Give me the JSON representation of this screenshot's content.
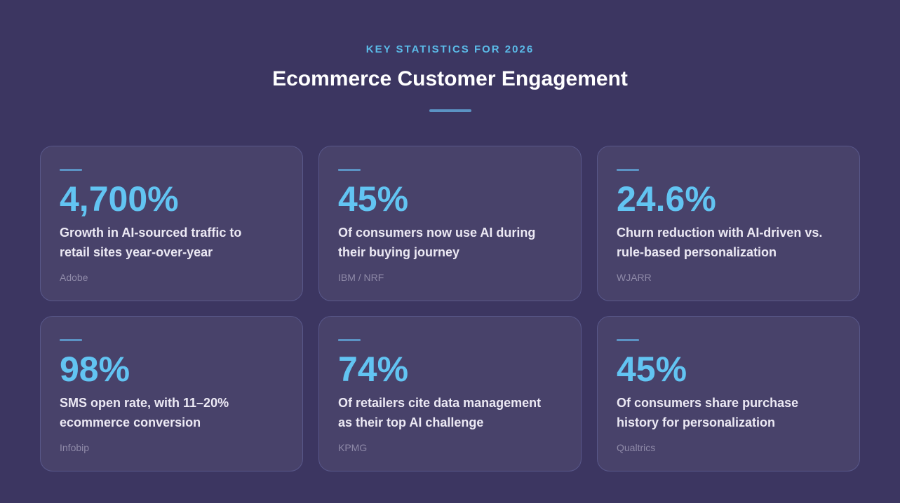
{
  "header": {
    "eyebrow": "KEY STATISTICS FOR 2026",
    "title": "Ecommerce Customer Engagement"
  },
  "colors": {
    "background": "#3c3661",
    "card": "#48426a",
    "accent": "#62c4f2",
    "rule": "#5b93c4"
  },
  "cards": [
    {
      "stat": "4,700%",
      "desc_lines": [
        "Growth in AI-sourced traffic to",
        "retail sites year-over-year"
      ],
      "source": "Adobe"
    },
    {
      "stat": "45%",
      "desc_lines": [
        "Of consumers now use AI during",
        "their buying journey"
      ],
      "source": "IBM / NRF"
    },
    {
      "stat": "24.6%",
      "desc_lines": [
        "Churn reduction with AI-driven vs.",
        "rule-based personalization"
      ],
      "source": "WJARR"
    },
    {
      "stat": "98%",
      "desc_lines": [
        "SMS open rate, with 11–20%",
        "ecommerce conversion"
      ],
      "source": "Infobip"
    },
    {
      "stat": "74%",
      "desc_lines": [
        "Of retailers cite data management",
        "as their top AI challenge"
      ],
      "source": "KPMG"
    },
    {
      "stat": "45%",
      "desc_lines": [
        "Of consumers share purchase",
        "history for personalization"
      ],
      "source": "Qualtrics"
    }
  ]
}
